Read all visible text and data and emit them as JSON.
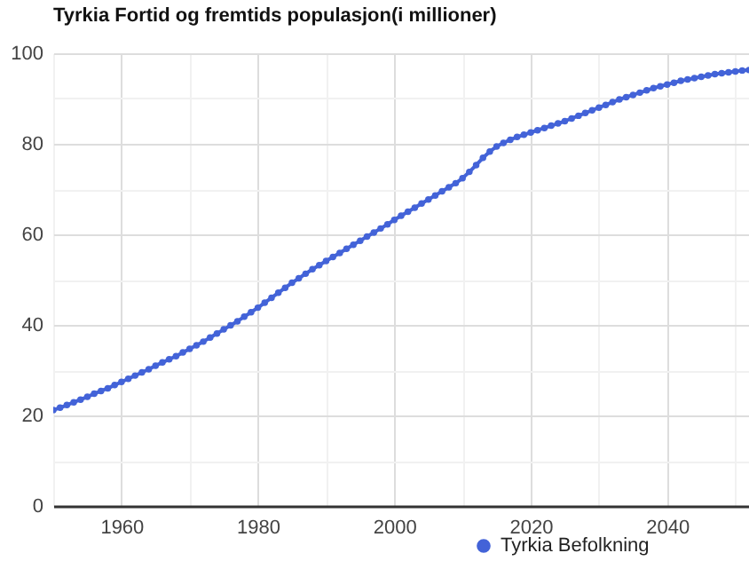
{
  "chart_data": {
    "type": "line",
    "title": "Tyrkia Fortid og fremtids populasjon(i millioner)",
    "x": [
      1950,
      1951,
      1952,
      1953,
      1954,
      1955,
      1956,
      1957,
      1958,
      1959,
      1960,
      1961,
      1962,
      1963,
      1964,
      1965,
      1966,
      1967,
      1968,
      1969,
      1970,
      1971,
      1972,
      1973,
      1974,
      1975,
      1976,
      1977,
      1978,
      1979,
      1980,
      1981,
      1982,
      1983,
      1984,
      1985,
      1986,
      1987,
      1988,
      1989,
      1990,
      1991,
      1992,
      1993,
      1994,
      1995,
      1996,
      1997,
      1998,
      1999,
      2000,
      2001,
      2002,
      2003,
      2004,
      2005,
      2006,
      2007,
      2008,
      2009,
      2010,
      2011,
      2012,
      2013,
      2014,
      2015,
      2016,
      2017,
      2018,
      2019,
      2020,
      2021,
      2022,
      2023,
      2024,
      2025,
      2026,
      2027,
      2028,
      2029,
      2030,
      2031,
      2032,
      2033,
      2034,
      2035,
      2036,
      2037,
      2038,
      2039,
      2040,
      2041,
      2042,
      2043,
      2044,
      2045,
      2046,
      2047,
      2048,
      2049,
      2050,
      2051,
      2052
    ],
    "series": [
      {
        "name": "Tyrkia Befolkning",
        "color": "#4363d8",
        "values": [
          21.2,
          21.7,
          22.3,
          22.9,
          23.5,
          24.1,
          24.8,
          25.4,
          26.0,
          26.7,
          27.4,
          28.1,
          28.8,
          29.5,
          30.2,
          31.0,
          31.7,
          32.4,
          33.1,
          33.9,
          34.7,
          35.5,
          36.3,
          37.2,
          38.1,
          39.0,
          39.9,
          40.8,
          41.8,
          42.8,
          43.8,
          44.9,
          46.0,
          47.1,
          48.2,
          49.3,
          50.3,
          51.3,
          52.3,
          53.2,
          54.1,
          55.0,
          55.9,
          56.8,
          57.7,
          58.6,
          59.5,
          60.4,
          61.3,
          62.2,
          63.2,
          64.1,
          65.0,
          65.9,
          66.8,
          67.7,
          68.6,
          69.5,
          70.4,
          71.3,
          72.4,
          73.8,
          75.3,
          76.9,
          78.3,
          79.4,
          80.2,
          80.9,
          81.5,
          82.0,
          82.5,
          83.0,
          83.5,
          84.0,
          84.5,
          85.0,
          85.6,
          86.2,
          86.8,
          87.4,
          88.0,
          88.6,
          89.2,
          89.8,
          90.3,
          90.8,
          91.3,
          91.8,
          92.3,
          92.7,
          93.1,
          93.5,
          93.9,
          94.2,
          94.5,
          94.8,
          95.1,
          95.4,
          95.6,
          95.8,
          96.0,
          96.2,
          96.3
        ]
      }
    ],
    "xlim": [
      1950,
      2052
    ],
    "xticks": [
      {
        "value": 1950,
        "label": null
      },
      1960,
      {
        "value": 1970,
        "label": null
      },
      1980,
      {
        "value": 1990,
        "label": null
      },
      2000,
      {
        "value": 2010,
        "label": null
      },
      2020,
      {
        "value": 2030,
        "label": null
      },
      2040,
      {
        "value": 2050,
        "label": null
      }
    ],
    "ylim": [
      0,
      100
    ],
    "yticks": [
      0,
      {
        "value": 10,
        "label": null
      },
      20,
      {
        "value": 30,
        "label": null
      },
      40,
      {
        "value": 50,
        "label": null
      },
      60,
      {
        "value": 70,
        "label": null
      },
      80,
      {
        "value": 90,
        "label": null
      },
      100
    ],
    "grid": true,
    "legend": "bottom",
    "marker": "circle",
    "line_style": "solid"
  }
}
